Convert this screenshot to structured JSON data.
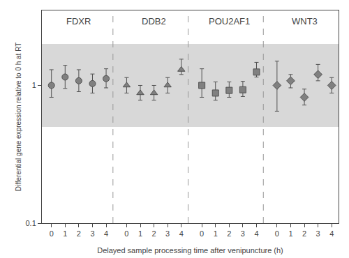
{
  "chart_data": {
    "type": "scatter",
    "xlabel": "Delayed sample processing time after venipuncture (h)",
    "ylabel": "Differential gene expression relative to 0 h at RT",
    "categories": [
      0,
      1,
      2,
      3,
      4
    ],
    "color": "#808080",
    "log": "y",
    "ylim": [
      0.1,
      3.5
    ],
    "yticks": [
      0.1,
      1
    ],
    "grid": false,
    "band": [
      0.5,
      2.0
    ],
    "band_color": "#d8d8d8",
    "series": [
      {
        "name": "FDXR",
        "marker": "circle",
        "values": [
          1.0,
          1.15,
          1.08,
          1.03,
          1.12
        ],
        "error_minus": [
          0.18,
          0.2,
          0.18,
          0.15,
          0.16
        ],
        "error_plus": [
          0.3,
          0.25,
          0.22,
          0.18,
          0.2
        ]
      },
      {
        "name": "DDB2",
        "marker": "triangle-up",
        "values": [
          1.0,
          0.88,
          0.88,
          1.0,
          1.3
        ],
        "error_minus": [
          0.12,
          0.1,
          0.1,
          0.12,
          0.1
        ],
        "error_plus": [
          0.14,
          0.12,
          0.12,
          0.14,
          0.25
        ]
      },
      {
        "name": "POU2AF1",
        "marker": "square",
        "values": [
          1.0,
          0.88,
          0.92,
          0.93,
          1.25
        ],
        "error_minus": [
          0.18,
          0.1,
          0.1,
          0.1,
          0.1
        ],
        "error_plus": [
          0.32,
          0.18,
          0.14,
          0.14,
          0.22
        ]
      },
      {
        "name": "WNT3",
        "marker": "diamond",
        "values": [
          1.0,
          1.08,
          0.82,
          1.2,
          1.0
        ],
        "error_minus": [
          0.35,
          0.12,
          0.1,
          0.12,
          0.12
        ],
        "error_plus": [
          0.5,
          0.12,
          0.12,
          0.22,
          0.14
        ]
      }
    ]
  }
}
